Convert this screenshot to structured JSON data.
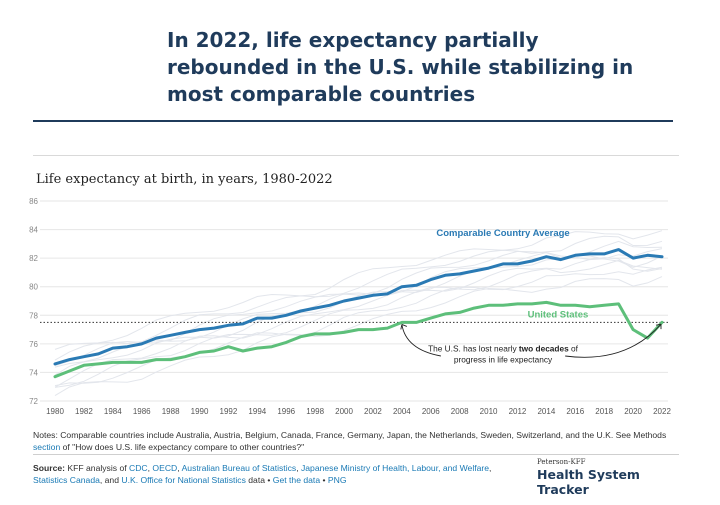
{
  "headline": "In 2022, life expectancy partially rebounded in the U.S. while stabilizing in most comparable countries",
  "subtitle": "Life expectancy at birth, in years, 1980-2022",
  "colors": {
    "us": "#5dbf7a",
    "comparable": "#2a7ab4",
    "peers": "#e3e6ec",
    "title": "#1f3b5b",
    "link": "#1a7ab5"
  },
  "chart_data": {
    "type": "line",
    "xlim": [
      1980,
      2022
    ],
    "ylim": [
      72,
      86
    ],
    "x_ticks": [
      1980,
      1982,
      1984,
      1986,
      1988,
      1990,
      1992,
      1994,
      1996,
      1998,
      2000,
      2002,
      2004,
      2006,
      2008,
      2010,
      2012,
      2014,
      2016,
      2018,
      2020,
      2022
    ],
    "y_ticks": [
      72,
      74,
      76,
      78,
      80,
      82,
      84,
      86
    ],
    "reference_line": 77.5,
    "series": [
      {
        "name": "Comparable Country Average",
        "x": [
          1980,
          1981,
          1982,
          1983,
          1984,
          1985,
          1986,
          1987,
          1988,
          1989,
          1990,
          1991,
          1992,
          1993,
          1994,
          1995,
          1996,
          1997,
          1998,
          1999,
          2000,
          2001,
          2002,
          2003,
          2004,
          2005,
          2006,
          2007,
          2008,
          2009,
          2010,
          2011,
          2012,
          2013,
          2014,
          2015,
          2016,
          2017,
          2018,
          2019,
          2020,
          2021,
          2022
        ],
        "values": [
          74.6,
          74.9,
          75.1,
          75.3,
          75.7,
          75.8,
          76.0,
          76.4,
          76.6,
          76.8,
          77.0,
          77.1,
          77.3,
          77.4,
          77.8,
          77.8,
          78.0,
          78.3,
          78.5,
          78.7,
          79.0,
          79.2,
          79.4,
          79.5,
          80.0,
          80.1,
          80.5,
          80.8,
          80.9,
          81.1,
          81.3,
          81.6,
          81.6,
          81.8,
          82.1,
          81.9,
          82.2,
          82.3,
          82.3,
          82.6,
          82.0,
          82.2,
          82.1
        ]
      },
      {
        "name": "United States",
        "x": [
          1980,
          1981,
          1982,
          1983,
          1984,
          1985,
          1986,
          1987,
          1988,
          1989,
          1990,
          1991,
          1992,
          1993,
          1994,
          1995,
          1996,
          1997,
          1998,
          1999,
          2000,
          2001,
          2002,
          2003,
          2004,
          2005,
          2006,
          2007,
          2008,
          2009,
          2010,
          2011,
          2012,
          2013,
          2014,
          2015,
          2016,
          2017,
          2018,
          2019,
          2020,
          2021,
          2022
        ],
        "values": [
          73.7,
          74.1,
          74.5,
          74.6,
          74.7,
          74.7,
          74.7,
          74.9,
          74.9,
          75.1,
          75.4,
          75.5,
          75.8,
          75.5,
          75.7,
          75.8,
          76.1,
          76.5,
          76.7,
          76.7,
          76.8,
          77.0,
          77.0,
          77.1,
          77.5,
          77.5,
          77.8,
          78.1,
          78.2,
          78.5,
          78.7,
          78.7,
          78.8,
          78.8,
          78.9,
          78.7,
          78.7,
          78.6,
          78.7,
          78.8,
          77.0,
          76.4,
          77.5
        ]
      }
    ],
    "labels": {
      "comparable": "Comparable Country Average",
      "us": "United States",
      "annotation": [
        "The U.S. has lost nearly ",
        "two decades",
        " of",
        "progress in life expectancy"
      ]
    },
    "background_series_base": [
      73.6,
      74.0,
      74.3,
      74.6,
      74.9,
      75.1,
      75.3,
      75.6,
      75.8,
      76.1,
      76.4,
      76.6,
      76.8,
      77.0,
      77.3,
      77.5,
      77.7,
      77.9,
      78.1,
      78.4,
      78.7,
      78.9,
      79.1,
      79.3,
      79.6,
      79.8,
      80.1,
      80.3,
      80.5,
      80.7,
      80.9,
      81.1,
      81.3,
      81.4,
      81.6,
      81.5,
      81.7,
      81.8,
      81.9,
      82.0,
      81.6,
      81.7,
      81.9
    ],
    "background_offsets": [
      -1.4,
      -0.9,
      -0.5,
      -0.2,
      0.2,
      0.5,
      0.9,
      1.3,
      1.8
    ]
  },
  "notes": {
    "prefix": "Notes: Comparable countries include Australia, Austria, Belgium, Canada, France, Germany, Japan, the Netherlands, Sweden, Switzerland, and the U.K. See Methods ",
    "link": "section",
    "suffix": " of \"How does U.S. life expectancy compare to other countries?\""
  },
  "source": {
    "label": "Source:",
    "t1": " KFF analysis of ",
    "l1": "CDC",
    "t2": ", ",
    "l2": "OECD",
    "t3": ", ",
    "l3": "Australian Bureau of Statistics",
    "t4": ", ",
    "l4": "Japanese Ministry of Health, Labour, and Welfare",
    "t5": ", ",
    "l5": "Statistics Canada",
    "t6": ", and ",
    "l6": "U.K. Office for National Statistics",
    "t7": " data • ",
    "l7": "Get the data",
    "t8": " • ",
    "l8": "PNG"
  },
  "logo": {
    "small": "Peterson-KFF",
    "big": "Health System Tracker"
  }
}
